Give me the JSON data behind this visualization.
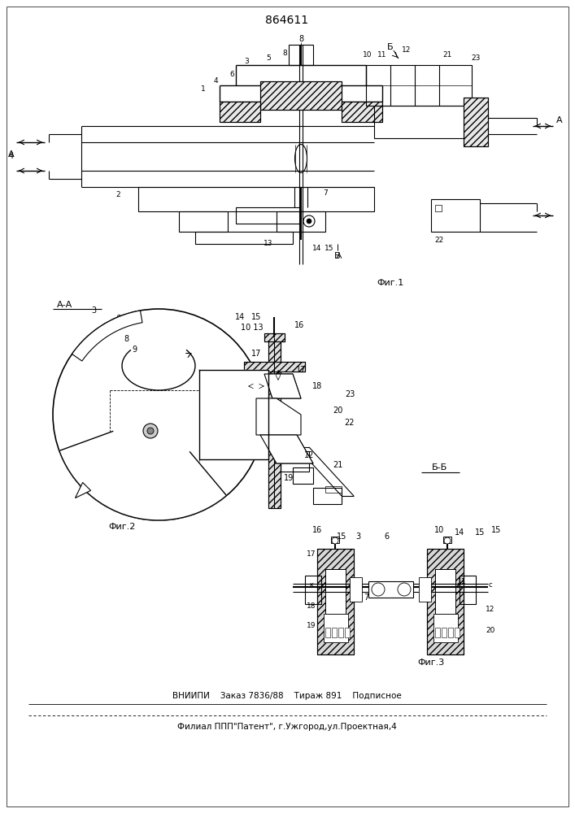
{
  "title": "864611",
  "fig1_label": "Фиг.1",
  "fig2_label": "Фиг.2",
  "fig3_label": "Фиг.3",
  "section_aa": "А-А",
  "section_bb": "Б-Б",
  "footer_line1": "ВНИИПИ    Заказ 7836/88    Тираж 891    Подписное",
  "footer_line2": "Филиал ППП\"Патент\", г.Ужгород,ул.Проектная,4",
  "bg_color": "#ffffff"
}
